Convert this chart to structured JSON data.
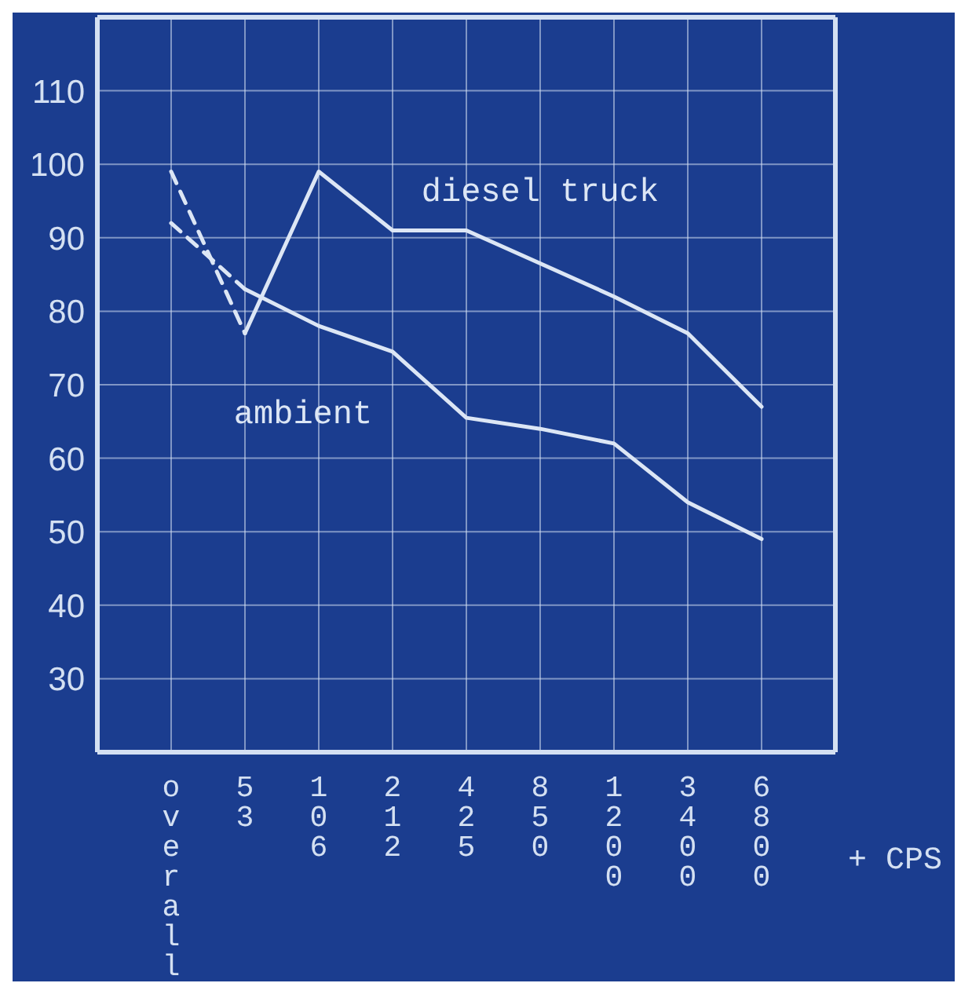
{
  "chart_data": {
    "type": "line",
    "xlabel": "+ CPS",
    "categories": [
      "overall",
      "53",
      "106",
      "212",
      "425",
      "850",
      "1200",
      "3400",
      "6800"
    ],
    "series": [
      {
        "name": "diesel truck",
        "color": "#dce6f5",
        "line_style": "solid",
        "values": [
          null,
          77,
          99,
          91,
          91,
          86.5,
          82,
          77,
          67
        ]
      },
      {
        "name": "ambient",
        "color": "#dce6f5",
        "line_style": "solid",
        "values": [
          null,
          83,
          78,
          74.5,
          65.5,
          64,
          62,
          54,
          49
        ]
      },
      {
        "color": "#dce6f5",
        "line_style": "dashed",
        "values": [
          99,
          77,
          null,
          null,
          null,
          null,
          null,
          null,
          null
        ]
      },
      {
        "color": "#dce6f5",
        "line_style": "dashed",
        "values": [
          92,
          83,
          null,
          null,
          null,
          null,
          null,
          null,
          null
        ]
      }
    ],
    "ylim": [
      20,
      120
    ],
    "yticks": [
      30,
      40,
      50,
      60,
      70,
      80,
      90,
      100,
      110
    ],
    "grid": true,
    "legend": false,
    "marker": "none"
  }
}
